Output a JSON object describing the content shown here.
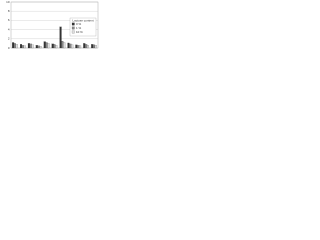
{
  "chart_data": {
    "type": "bar",
    "legend_title": "Lactose content",
    "categories": [
      null,
      null,
      null,
      null,
      null,
      null,
      null,
      null,
      null,
      null,
      null
    ],
    "series": [
      {
        "name": "0 %",
        "color": "#333333",
        "values": [
          1.2,
          0.8,
          1.0,
          0.6,
          1.4,
          0.9,
          4.6,
          1.1,
          0.7,
          1.0,
          0.8
        ]
      },
      {
        "name": "1 %",
        "color": "#888888",
        "values": [
          1.0,
          0.6,
          0.9,
          0.5,
          1.2,
          0.8,
          1.5,
          0.9,
          0.6,
          0.8,
          0.7
        ]
      },
      {
        "name": "10 %",
        "color": "#dddddd",
        "values": [
          0.8,
          0.5,
          0.7,
          0.4,
          1.0,
          0.6,
          1.2,
          0.7,
          0.5,
          0.6,
          0.6
        ]
      }
    ],
    "ylim": [
      0,
      10
    ],
    "yticks": [
      0,
      2,
      4,
      6,
      8,
      10
    ],
    "grid": true,
    "legend": "right"
  }
}
